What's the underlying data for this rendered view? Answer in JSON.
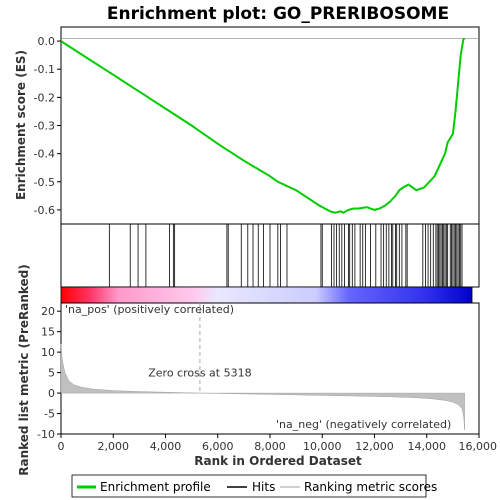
{
  "chart_data": {
    "type": "line",
    "title": "Enrichment plot: GO_PRERIBOSOME",
    "top_panel": {
      "ylabel": "Enrichment score (ES)",
      "ylim": [
        -0.65,
        0.05
      ],
      "yticks": [
        0.0,
        -0.1,
        -0.2,
        -0.3,
        -0.4,
        -0.5,
        -0.6
      ],
      "ytick_labels": [
        "0.0",
        "-0.1",
        "-0.2",
        "-0.3",
        "-0.4",
        "-0.5",
        "-0.6"
      ],
      "grid": false,
      "series": [
        {
          "name": "Enrichment profile",
          "color": "#00cc00",
          "x": [
            0,
            1000,
            2000,
            3000,
            4000,
            5000,
            6000,
            7000,
            8000,
            8300,
            9000,
            9900,
            10000,
            10300,
            10500,
            10700,
            10800,
            11000,
            11200,
            11400,
            11700,
            12000,
            12200,
            12400,
            12600,
            12800,
            12950,
            13100,
            13300,
            13600,
            13900,
            14100,
            14300,
            14500,
            14700,
            14800,
            15000,
            15100,
            15200,
            15300,
            15400,
            15450
          ],
          "y": [
            0.0,
            -0.06,
            -0.12,
            -0.18,
            -0.24,
            -0.3,
            -0.365,
            -0.425,
            -0.48,
            -0.5,
            -0.53,
            -0.585,
            -0.59,
            -0.605,
            -0.61,
            -0.605,
            -0.61,
            -0.6,
            -0.595,
            -0.595,
            -0.59,
            -0.6,
            -0.595,
            -0.585,
            -0.57,
            -0.55,
            -0.53,
            -0.52,
            -0.51,
            -0.53,
            -0.52,
            -0.5,
            -0.48,
            -0.44,
            -0.4,
            -0.36,
            -0.33,
            -0.25,
            -0.15,
            -0.05,
            0.005,
            0.01
          ]
        }
      ]
    },
    "hits_panel": {
      "hit_positions": [
        1850,
        2650,
        2950,
        3250,
        4150,
        4300,
        4350,
        6350,
        6400,
        6900,
        7150,
        7350,
        7550,
        7750,
        8000,
        8300,
        8400,
        8650,
        9950,
        10000,
        10350,
        10450,
        10550,
        10650,
        10750,
        10850,
        11000,
        11050,
        11150,
        11250,
        11450,
        11550,
        11650,
        11850,
        12050,
        12250,
        12350,
        12450,
        12550,
        12650,
        12700,
        12800,
        12850,
        12950,
        13050,
        13200,
        13250,
        13850,
        13950,
        14050,
        14150,
        14250,
        14350,
        14400,
        14450,
        14500,
        14550,
        14600,
        14650,
        14700,
        14750,
        14800,
        14900,
        14950,
        15000,
        15050,
        15100,
        15150,
        15200,
        15250,
        15300,
        15350
      ],
      "color": "#000000"
    },
    "color_bar": {
      "gradient_stops": [
        "#ff0000",
        "#ff6699",
        "#ffcce6",
        "#ffffff",
        "#ccccff",
        "#6666ff",
        "#0000cc"
      ]
    },
    "bottom_panel": {
      "ylabel": "Ranked list metric (PreRanked)",
      "xlabel": "Rank in Ordered Dataset",
      "xlim": [
        0,
        16000
      ],
      "ylim": [
        -10,
        22
      ],
      "xticks": [
        0,
        2000,
        4000,
        6000,
        8000,
        10000,
        12000,
        14000,
        16000
      ],
      "xtick_labels": [
        "0",
        "2,000",
        "4,000",
        "6,000",
        "8,000",
        "10,000",
        "12,000",
        "14,000",
        "16,000"
      ],
      "yticks": [
        20,
        15,
        10,
        5,
        0,
        -5,
        -10
      ],
      "ytick_labels": [
        "20",
        "15",
        "10",
        "5",
        "0",
        "-5",
        "-10"
      ],
      "series": [
        {
          "name": "Ranking metric scores",
          "color": "#c0c0c0",
          "x": [
            0,
            50,
            150,
            300,
            500,
            800,
            1200,
            2000,
            3000,
            4000,
            5318,
            7000,
            9000,
            11000,
            12500,
            13500,
            14200,
            14700,
            15000,
            15200,
            15350,
            15420,
            15450
          ],
          "y": [
            12,
            8,
            5,
            3,
            2,
            1.4,
            1.0,
            0.6,
            0.35,
            0.2,
            0.0,
            -0.2,
            -0.45,
            -0.7,
            -0.9,
            -1.1,
            -1.4,
            -1.8,
            -2.2,
            -2.8,
            -3.8,
            -6,
            -9
          ]
        }
      ],
      "annotations": {
        "zero_cross": "Zero cross at 5318",
        "zero_cross_x": 5318,
        "pos_label": "'na_pos' (positively correlated)",
        "neg_label": "'na_neg' (negatively correlated)",
        "pos_color": "#ff0000",
        "neg_color": "#0000cc"
      }
    },
    "legend": {
      "items": [
        {
          "label": "Enrichment profile",
          "color": "#00cc00"
        },
        {
          "label": "Hits",
          "color": "#000000"
        },
        {
          "label": "Ranking metric scores",
          "color": "#c0c0c0"
        }
      ]
    }
  }
}
